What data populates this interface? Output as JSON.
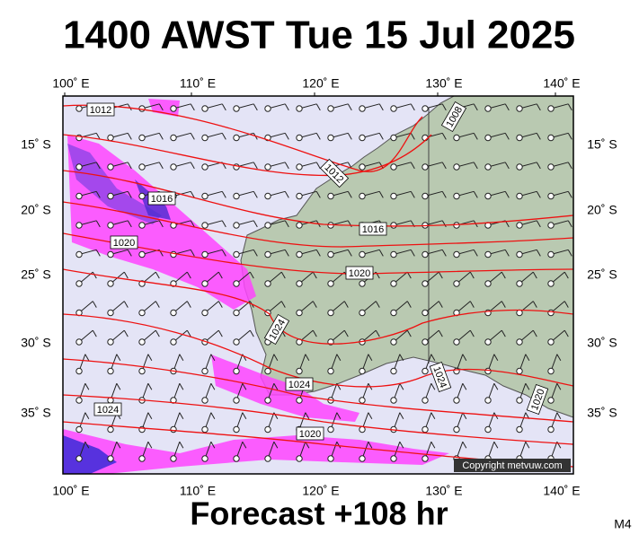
{
  "header": {
    "title": "1400 AWST Tue 15 Jul 2025"
  },
  "footer": {
    "forecast": "Forecast +108 hr",
    "model": "M4"
  },
  "map": {
    "copyright": "Copyright metvuw.com",
    "lon_labels": [
      "100˚ E",
      "110˚ E",
      "120˚ E",
      "130˚ E",
      "140˚ E"
    ],
    "lat_labels": [
      "15˚ S",
      "20˚ S",
      "25˚ S",
      "30˚ S",
      "35˚ S"
    ],
    "isobar_labels": [
      "1012",
      "1008",
      "1016",
      "1012",
      "1016",
      "1020",
      "1020",
      "1024",
      "1024",
      "1024",
      "1024",
      "1020",
      "1020"
    ]
  }
}
